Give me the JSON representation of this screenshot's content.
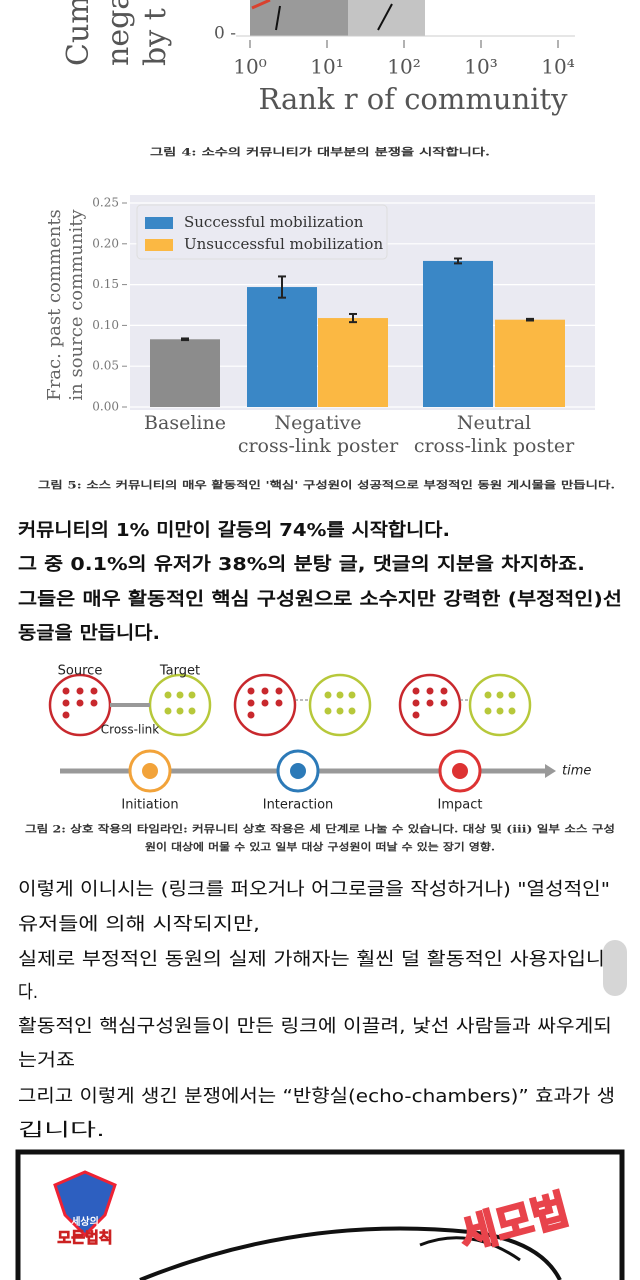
{
  "chart_data": [
    {
      "type": "bar",
      "ylabel_fragments": [
        "Cum",
        "negat",
        "by t"
      ],
      "xlabel": "Rank r of community",
      "xscale": "log",
      "xlim": [
        0.66,
        16600
      ],
      "xticks": [
        {
          "value": 1,
          "label": "10⁰"
        },
        {
          "value": 10,
          "label": "10¹"
        },
        {
          "value": 100,
          "label": "10²"
        },
        {
          "value": 1000,
          "label": "10³"
        },
        {
          "value": 10000,
          "label": "10⁴"
        }
      ],
      "yticks": [
        {
          "value": 0,
          "label": "0 -"
        }
      ]
    },
    {
      "type": "bar",
      "ylabel": [
        "Frac. past comments",
        "in source community"
      ],
      "categories": [
        [
          "Baseline"
        ],
        [
          "Negative",
          "cross-link poster"
        ],
        [
          "Neutral",
          "cross-link poster"
        ]
      ],
      "ylim": [
        0,
        0.25
      ],
      "yticks": [
        {
          "value": 0,
          "label": "0.00"
        },
        0.05,
        {
          "value": 0.1,
          "label": "0.10"
        },
        0.15,
        {
          "value": 0.2,
          "label": "0.20"
        },
        0.25
      ],
      "grid": true,
      "legend": "upper left",
      "baseline": {
        "value": 0.083,
        "error": 0.001,
        "color": "#8c8c8c"
      },
      "series": [
        {
          "name": "Successful mobilization",
          "color": "#3a87c6",
          "values": [
            null,
            0.147,
            0.179
          ],
          "errors": [
            null,
            0.013,
            0.003
          ]
        },
        {
          "name": "Unsuccessful mobilization",
          "color": "#fbb843",
          "values": [
            null,
            0.109,
            0.107
          ],
          "errors": [
            null,
            0.005,
            0.001
          ]
        }
      ]
    }
  ],
  "captions": {
    "fig4": "그림 4: 소수의 커뮤니티가 대부분의 분쟁을 시작합니다.",
    "fig5": "그림 5: 소스 커뮤니티의 매우 활동적인 '핵심' 구성원이 성공적으로 부정적인 동원 게시물을 만듭니다.",
    "fig2": [
      "그림 2: 상호 작용의 타임라인: 커뮤니티 상호 작용은 세 단계로 나눌 수 있습니다. 대상 및 (iii) 일부 소스 구성",
      "원이 대상에 머물 수 있고 일부 대상 구성원이 떠날 수 있는 장기 영향."
    ]
  },
  "paragraph1": [
    "커뮤니티의 1% 미만이 갈등의 74%를 시작합니다.",
    "그 중 0.1%의 유저가 38%의 분탕 글, 댓글의 지분을 차지하죠.",
    "그들은 매우 활동적인 핵심 구성원으로 소수지만 강력한 (부정적인)선",
    "동글을 만듭니다."
  ],
  "diagram": {
    "source": "Source",
    "target": "Target",
    "link": "Cross-link",
    "time": "time",
    "stages": [
      "Initiation",
      "Interaction",
      "Impact"
    ]
  },
  "paragraph2": [
    "이렇게 이니시는 (링크를 퍼오거나 어그로글을 작성하거나) \"열성적인\"",
    "유저들에 의해 시작되지만,",
    "실제로 부정적인 동원의 실제 가해자는 훨씬 덜 활동적인 사용자입니",
    "다.",
    "활동적인 핵심구성원들이 만든 링크에 이끌려, 낯선 사람들과 싸우게되",
    "는거죠",
    "그리고 이렇게 생긴 분쟁에서는 “반향실(echo-chambers)” 효과가 생",
    "깁니다."
  ],
  "image": {
    "logo": [
      "세상의",
      "모든법칙"
    ],
    "stamp": "세모법"
  }
}
